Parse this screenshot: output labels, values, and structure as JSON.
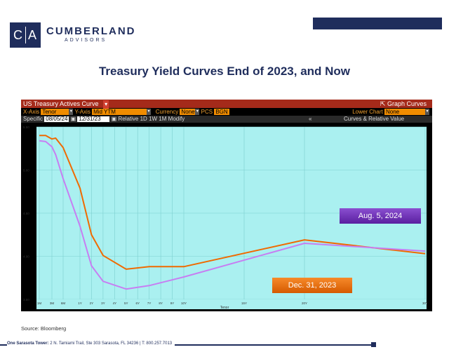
{
  "header": {
    "logo_text": "C|A",
    "logo_left": "C",
    "logo_right": "A",
    "brand": "CUMBERLAND",
    "brand_sub": "ADVISORS"
  },
  "slide_title": "Treasury Yield Curves End of 2023, and Now",
  "terminal": {
    "title": "US Treasury Actives Curve",
    "graph_curves": "Graph Curves",
    "x_axis_label": "X-Axis",
    "x_axis_value": "Tenor",
    "y_axis_label": "Y-Axis",
    "y_axis_value": "Mid YTM",
    "currency_label": "Currency",
    "currency_value": "None",
    "pcs_label": "PCS",
    "pcs_value": "BGN",
    "lower_chart_label": "Lower Chart",
    "lower_chart_value": "None",
    "specific_label": "Specific",
    "date1": "08/05/24",
    "date2": "12/31/23",
    "relative": "Relative",
    "btn_1d": "1D",
    "btn_1w": "1W",
    "btn_1m": "1M",
    "modify": "Modify",
    "curves_rel": "Curves & Relative Value"
  },
  "chart_data": {
    "type": "line",
    "x": [
      "1M",
      "2M",
      "3M",
      "4M",
      "6M",
      "1Y",
      "2Y",
      "3Y",
      "5Y",
      "7Y",
      "10Y",
      "20Y",
      "30Y"
    ],
    "x_positions_years": [
      0.083,
      0.167,
      0.25,
      0.333,
      0.5,
      1,
      2,
      3,
      5,
      7,
      10,
      20,
      30
    ],
    "tick_labels": [
      "1M",
      "3M",
      "6M",
      "1Y",
      "2Y",
      "3Y",
      "4Y",
      "5Y",
      "6Y",
      "7Y",
      "8Y",
      "9Y",
      "10Y",
      "15Y",
      "20Y",
      "30Y"
    ],
    "tick_years": [
      0.083,
      0.25,
      0.5,
      1,
      2,
      3,
      4,
      5,
      6,
      7,
      8,
      9,
      10,
      15,
      20,
      30
    ],
    "xlabel": "Tenor",
    "ylabel": "",
    "ylim": [
      3.5,
      5.5
    ],
    "yticks": [
      "5.50",
      "5.00",
      "4.50",
      "4.00",
      "3.50"
    ],
    "ytick_values": [
      5.5,
      5.0,
      4.5,
      4.0,
      3.5
    ],
    "series": [
      {
        "name": "Dec. 31, 2023",
        "color": "#f06a00",
        "values": [
          5.4,
          5.4,
          5.36,
          5.37,
          5.26,
          4.79,
          4.25,
          4.01,
          3.85,
          3.88,
          3.88,
          4.19,
          4.03
        ]
      },
      {
        "name": "Aug. 5, 2024",
        "color": "#c77ef2",
        "values": [
          5.34,
          5.33,
          5.27,
          5.18,
          4.9,
          4.35,
          3.89,
          3.71,
          3.62,
          3.66,
          3.76,
          4.15,
          4.06
        ]
      }
    ],
    "grid": true,
    "background": "#aaf0f0"
  },
  "annotations": {
    "aug": "Aug. 5, 2024",
    "dec": "Dec. 31, 2023"
  },
  "source": "Source: Bloomberg",
  "footer": {
    "bold": "One Sarasota Tower:",
    "text": "2 N. Tamiami Trail, Ste 303  Sarasota, FL 34236   |   T: 800.257.7013"
  }
}
